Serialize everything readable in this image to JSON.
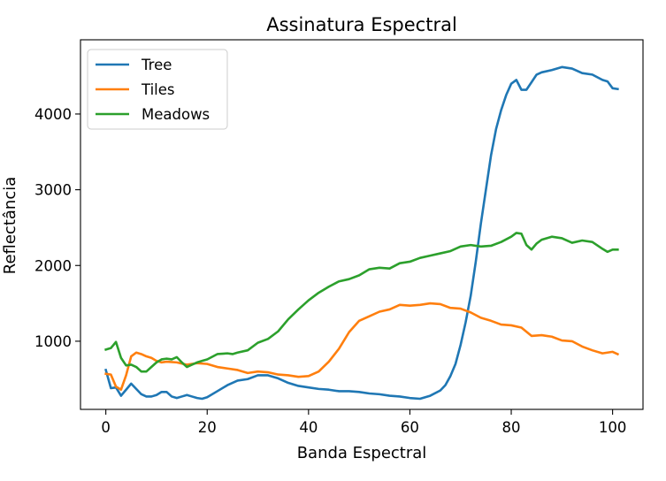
{
  "chart_data": {
    "type": "line",
    "title": "Assinatura Espectral",
    "xlabel": "Banda Espectral",
    "ylabel": "Reflectância",
    "xlim": [
      -5,
      106
    ],
    "ylim": [
      100,
      4980
    ],
    "xticks": [
      0,
      20,
      40,
      60,
      80,
      100
    ],
    "yticks": [
      1000,
      2000,
      3000,
      4000
    ],
    "grid": false,
    "legend_position": "top-left",
    "series": [
      {
        "name": "Tree",
        "color": "#1f77b4",
        "x": [
          0,
          1,
          2,
          3,
          4,
          5,
          6,
          7,
          8,
          9,
          10,
          11,
          12,
          13,
          14,
          15,
          16,
          17,
          18,
          19,
          20,
          22,
          24,
          26,
          28,
          30,
          32,
          34,
          36,
          38,
          40,
          42,
          44,
          46,
          48,
          50,
          52,
          54,
          56,
          58,
          60,
          62,
          64,
          66,
          67,
          68,
          69,
          70,
          71,
          72,
          73,
          74,
          75,
          76,
          77,
          78,
          79,
          80,
          81,
          82,
          83,
          84,
          85,
          86,
          88,
          90,
          92,
          94,
          96,
          98,
          99,
          100,
          101
        ],
        "y": [
          620,
          380,
          390,
          280,
          360,
          440,
          370,
          300,
          270,
          270,
          290,
          330,
          330,
          270,
          250,
          270,
          290,
          270,
          250,
          240,
          260,
          340,
          420,
          480,
          500,
          550,
          550,
          510,
          450,
          410,
          390,
          370,
          360,
          340,
          340,
          330,
          310,
          300,
          280,
          270,
          250,
          240,
          280,
          350,
          420,
          540,
          700,
          950,
          1250,
          1600,
          2050,
          2550,
          3000,
          3450,
          3800,
          4050,
          4250,
          4400,
          4450,
          4320,
          4320,
          4420,
          4520,
          4550,
          4580,
          4620,
          4600,
          4540,
          4520,
          4450,
          4430,
          4340,
          4330
        ]
      },
      {
        "name": "Tiles",
        "color": "#ff7f0e",
        "x": [
          0,
          1,
          2,
          3,
          4,
          5,
          6,
          7,
          8,
          9,
          10,
          11,
          12,
          14,
          16,
          18,
          20,
          22,
          24,
          26,
          28,
          30,
          32,
          34,
          36,
          38,
          40,
          42,
          44,
          46,
          48,
          50,
          52,
          54,
          56,
          58,
          60,
          62,
          64,
          66,
          68,
          70,
          72,
          74,
          76,
          78,
          80,
          82,
          84,
          86,
          88,
          90,
          92,
          94,
          96,
          98,
          100,
          101
        ],
        "y": [
          570,
          560,
          400,
          360,
          550,
          800,
          850,
          830,
          800,
          780,
          740,
          720,
          730,
          720,
          690,
          710,
          700,
          660,
          640,
          620,
          580,
          600,
          590,
          560,
          550,
          530,
          540,
          600,
          730,
          900,
          1120,
          1270,
          1330,
          1390,
          1420,
          1480,
          1470,
          1480,
          1500,
          1490,
          1440,
          1430,
          1380,
          1310,
          1270,
          1220,
          1210,
          1180,
          1070,
          1080,
          1060,
          1010,
          1000,
          930,
          880,
          840,
          860,
          830
        ]
      },
      {
        "name": "Meadows",
        "color": "#2ca02c",
        "x": [
          0,
          1,
          2,
          3,
          4,
          5,
          6,
          7,
          8,
          9,
          10,
          11,
          12,
          13,
          14,
          15,
          16,
          17,
          18,
          19,
          20,
          22,
          24,
          25,
          26,
          28,
          30,
          32,
          34,
          36,
          38,
          40,
          42,
          44,
          46,
          48,
          50,
          52,
          54,
          56,
          58,
          60,
          62,
          64,
          66,
          68,
          70,
          72,
          74,
          76,
          78,
          80,
          81,
          82,
          83,
          84,
          85,
          86,
          88,
          90,
          92,
          94,
          96,
          98,
          99,
          100,
          101
        ],
        "y": [
          890,
          910,
          990,
          780,
          680,
          690,
          660,
          600,
          600,
          660,
          720,
          760,
          770,
          760,
          790,
          720,
          660,
          690,
          720,
          740,
          760,
          830,
          840,
          830,
          850,
          880,
          980,
          1030,
          1130,
          1290,
          1420,
          1540,
          1640,
          1720,
          1790,
          1820,
          1870,
          1950,
          1970,
          1960,
          2030,
          2050,
          2100,
          2130,
          2160,
          2190,
          2250,
          2270,
          2250,
          2260,
          2310,
          2380,
          2430,
          2420,
          2270,
          2210,
          2290,
          2340,
          2380,
          2360,
          2300,
          2330,
          2310,
          2220,
          2180,
          2210,
          2210
        ]
      }
    ]
  }
}
